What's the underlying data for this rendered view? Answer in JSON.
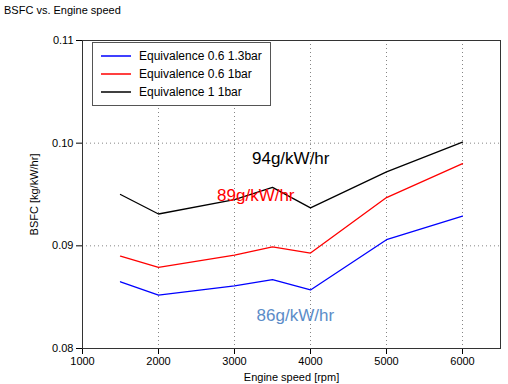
{
  "chart_data": {
    "type": "line",
    "title": "BSFC vs. Engine speed",
    "x_label": "Engine speed [rpm]",
    "y_label": "BSFC [kg/kW/hr]",
    "x": [
      1500,
      2000,
      3000,
      3500,
      4000,
      5000,
      6000
    ],
    "series": [
      {
        "name": "Equivalence 0.6 1.3bar",
        "color": "#0000ff",
        "values": [
          0.0865,
          0.0852,
          0.0861,
          0.0867,
          0.0857,
          0.0906,
          0.0929
        ]
      },
      {
        "name": "Equivalence 0.6 1bar",
        "color": "#ff0000",
        "values": [
          0.089,
          0.0879,
          0.0891,
          0.0899,
          0.0893,
          0.0947,
          0.098
        ]
      },
      {
        "name": "Equivalence 1 1bar",
        "color": "#000000",
        "values": [
          0.095,
          0.0931,
          0.0945,
          0.0957,
          0.0937,
          0.0972,
          0.1001
        ]
      }
    ],
    "annotations": [
      {
        "text": "94g/kW/hr",
        "x": 3740,
        "y": 0.0985,
        "color": "#000000"
      },
      {
        "text": "89g/kW/hr",
        "x": 3280,
        "y": 0.0949,
        "color": "#ff0000"
      },
      {
        "text": "86g/kW/hr",
        "x": 3800,
        "y": 0.0832,
        "color": "#5b8cc8"
      }
    ],
    "xlim": [
      1000,
      6500
    ],
    "xticks": [
      1000,
      2000,
      3000,
      4000,
      5000,
      6000
    ],
    "ylim": [
      0.08,
      0.11
    ],
    "yticks": [
      0.08,
      0.09,
      {
        "value": 0.1,
        "label": "0.10"
      },
      0.11
    ],
    "grid": true,
    "legend": "upper left"
  }
}
